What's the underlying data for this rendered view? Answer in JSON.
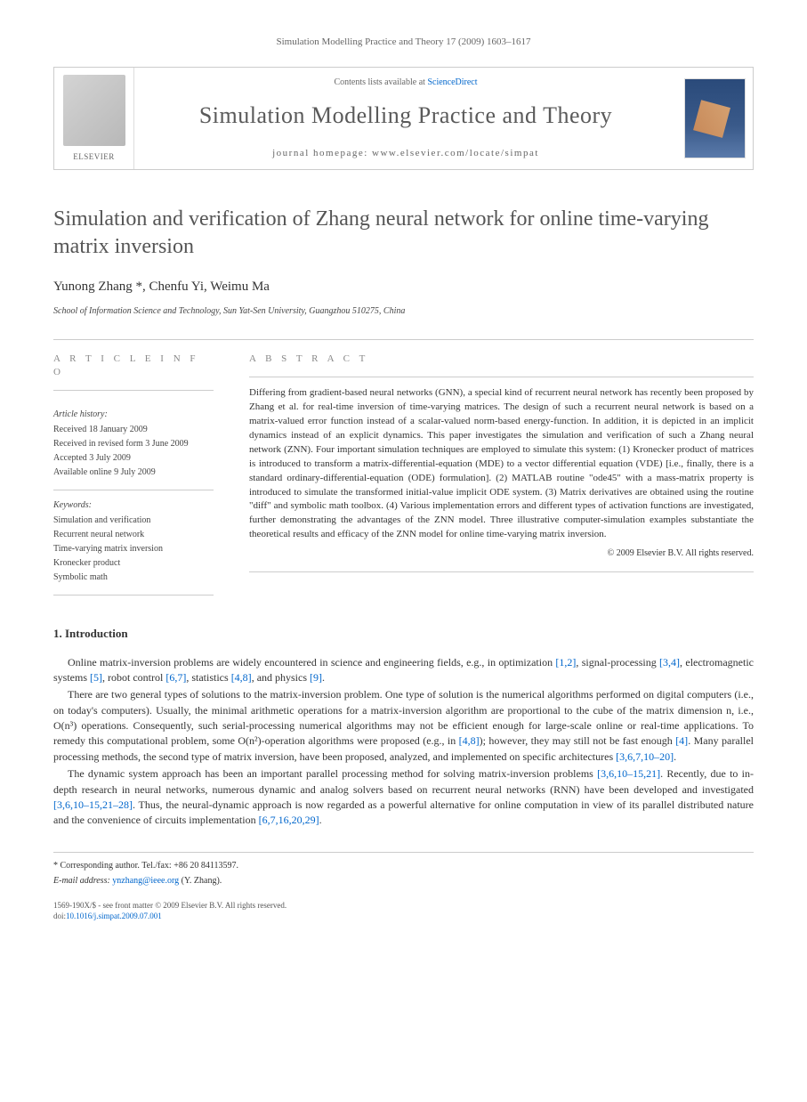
{
  "runningHeader": "Simulation Modelling Practice and Theory 17 (2009) 1603–1617",
  "masthead": {
    "contentsPrefix": "Contents lists available at ",
    "contentsLink": "ScienceDirect",
    "journalName": "Simulation Modelling Practice and Theory",
    "homepagePrefix": "journal homepage: ",
    "homepageUrl": "www.elsevier.com/locate/simpat",
    "publisher": "ELSEVIER"
  },
  "article": {
    "title": "Simulation and verification of Zhang neural network for online time-varying matrix inversion",
    "authors": "Yunong Zhang *, Chenfu Yi, Weimu Ma",
    "affiliation": "School of Information Science and Technology, Sun Yat-Sen University, Guangzhou 510275, China"
  },
  "info": {
    "heading": "A R T I C L E   I N F O",
    "historyHeading": "Article history:",
    "received": "Received 18 January 2009",
    "revisedForm": "Received in revised form 3 June 2009",
    "accepted": "Accepted 3 July 2009",
    "online": "Available online 9 July 2009",
    "keywordsHeading": "Keywords:",
    "kw1": "Simulation and verification",
    "kw2": "Recurrent neural network",
    "kw3": "Time-varying matrix inversion",
    "kw4": "Kronecker product",
    "kw5": "Symbolic math"
  },
  "abstract": {
    "heading": "A B S T R A C T",
    "text": "Differing from gradient-based neural networks (GNN), a special kind of recurrent neural network has recently been proposed by Zhang et al. for real-time inversion of time-varying matrices. The design of such a recurrent neural network is based on a matrix-valued error function instead of a scalar-valued norm-based energy-function. In addition, it is depicted in an implicit dynamics instead of an explicit dynamics. This paper investigates the simulation and verification of such a Zhang neural network (ZNN). Four important simulation techniques are employed to simulate this system: (1) Kronecker product of matrices is introduced to transform a matrix-differential-equation (MDE) to a vector differential equation (VDE) [i.e., finally, there is a standard ordinary-differential-equation (ODE) formulation]. (2) MATLAB routine \"ode45\" with a mass-matrix property is introduced to simulate the transformed initial-value implicit ODE system. (3) Matrix derivatives are obtained using the routine \"diff\" and symbolic math toolbox. (4) Various implementation errors and different types of activation functions are investigated, further demonstrating the advantages of the ZNN model. Three illustrative computer-simulation examples substantiate the theoretical results and efficacy of the ZNN model for online time-varying matrix inversion.",
    "copyright": "© 2009 Elsevier B.V. All rights reserved."
  },
  "introduction": {
    "heading": "1. Introduction",
    "p1_a": "Online matrix-inversion problems are widely encountered in science and engineering fields, e.g., in optimization ",
    "p1_r1": "[1,2]",
    "p1_b": ", signal-processing ",
    "p1_r2": "[3,4]",
    "p1_c": ", electromagnetic systems ",
    "p1_r3": "[5]",
    "p1_d": ", robot control ",
    "p1_r4": "[6,7]",
    "p1_e": ", statistics ",
    "p1_r5": "[4,8]",
    "p1_f": ", and physics ",
    "p1_r6": "[9]",
    "p1_g": ".",
    "p2_a": "There are two general types of solutions to the matrix-inversion problem. One type of solution is the numerical algorithms performed on digital computers (i.e., on today's computers). Usually, the minimal arithmetic operations for a matrix-inversion algorithm are proportional to the cube of the matrix dimension n, i.e., O(n³) operations. Consequently, such serial-processing numerical algorithms may not be efficient enough for large-scale online or real-time applications. To remedy this computational problem, some O(n²)-operation algorithms were proposed (e.g., in ",
    "p2_r1": "[4,8]",
    "p2_b": "); however, they may still not be fast enough ",
    "p2_r2": "[4]",
    "p2_c": ". Many parallel processing methods, the second type of matrix inversion, have been proposed, analyzed, and implemented on specific architectures ",
    "p2_r3": "[3,6,7,10–20]",
    "p2_d": ".",
    "p3_a": "The dynamic system approach has been an important parallel processing method for solving matrix-inversion problems ",
    "p3_r1": "[3,6,10–15,21]",
    "p3_b": ". Recently, due to in-depth research in neural networks, numerous dynamic and analog solvers based on recurrent neural networks (RNN) have been developed and investigated ",
    "p3_r2": "[3,6,10–15,21–28]",
    "p3_c": ". Thus, the neural-dynamic approach is now regarded as a powerful alternative for online computation in view of its parallel distributed nature and the convenience of circuits implementation ",
    "p3_r3": "[6,7,16,20,29]",
    "p3_d": "."
  },
  "footer": {
    "correspPrefix": "* Corresponding author. Tel./fax: +86 20 84113597.",
    "emailLabel": "E-mail address: ",
    "email": "ynzhang@ieee.org",
    "emailSuffix": " (Y. Zhang).",
    "copyright": "1569-190X/$ - see front matter © 2009 Elsevier B.V. All rights reserved.",
    "doiPrefix": "doi:",
    "doi": "10.1016/j.simpat.2009.07.001"
  }
}
